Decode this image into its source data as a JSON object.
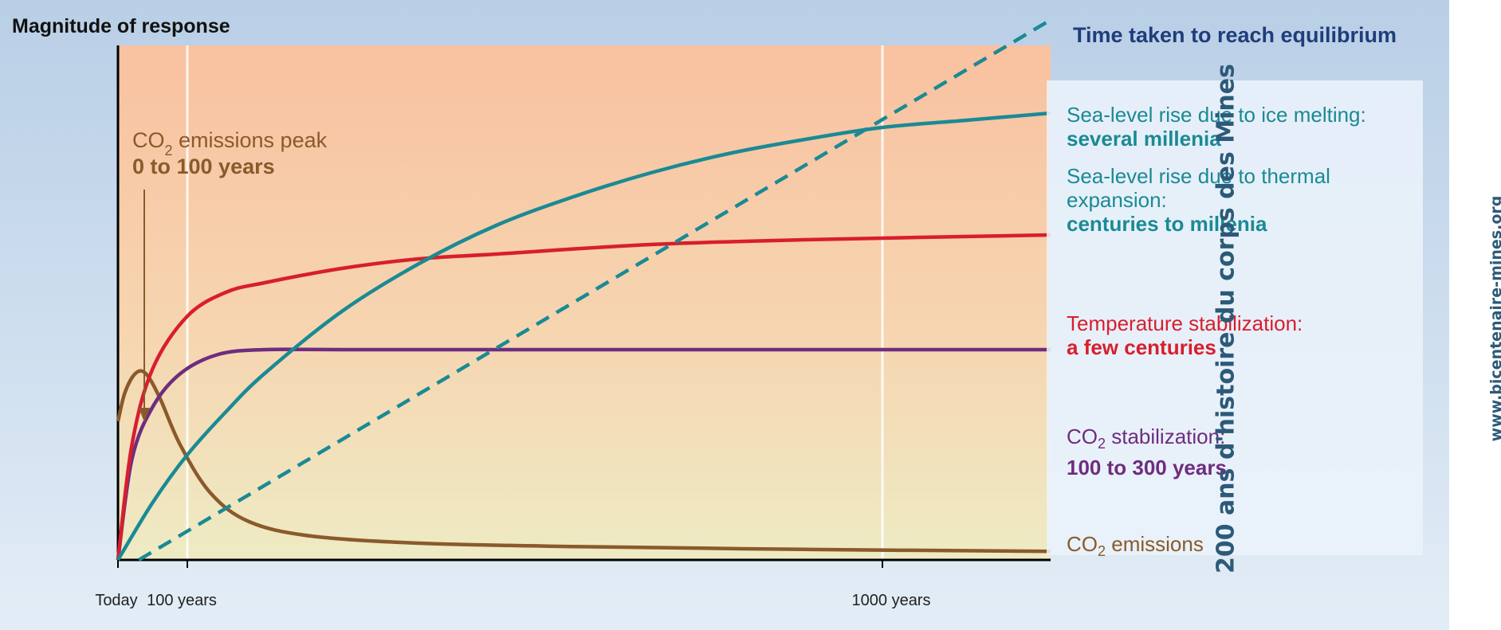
{
  "chart_data": {
    "type": "line",
    "ylabel": "Magnitude of response",
    "x_ticks": [
      {
        "value": 0,
        "label": "Today"
      },
      {
        "value": 100,
        "label": "100 years"
      },
      {
        "value": 1000,
        "label": "1000 years"
      }
    ],
    "xlim": [
      0,
      1200
    ],
    "ylim": [
      0,
      1
    ],
    "annotation": {
      "text_prefix": "CO",
      "text_sub": "2",
      "text_suffix": " emissions peak",
      "bold": "0 to 100 years",
      "points_to_x": 40
    },
    "right_panel_title": "Time taken to reach equilibrium",
    "series": [
      {
        "name": "CO2 emissions",
        "color": "#8a5a2b",
        "dash": false,
        "x": [
          0,
          10,
          25,
          40,
          60,
          90,
          130,
          180,
          260,
          400,
          600,
          900,
          1200
        ],
        "y": [
          0.29,
          0.35,
          0.39,
          0.39,
          0.34,
          0.24,
          0.14,
          0.08,
          0.05,
          0.035,
          0.028,
          0.022,
          0.018
        ]
      },
      {
        "name": "CO2 stabilization",
        "color": "#6e2d7e",
        "dash": false,
        "x": [
          0,
          20,
          50,
          90,
          140,
          200,
          300,
          600,
          900,
          1200
        ],
        "y": [
          0,
          0.21,
          0.32,
          0.39,
          0.43,
          0.44,
          0.44,
          0.44,
          0.44,
          0.44
        ]
      },
      {
        "name": "Temperature stabilization",
        "color": "#d81e2d",
        "dash": false,
        "x": [
          0,
          20,
          50,
          100,
          150,
          200,
          300,
          400,
          500,
          700,
          900,
          1200
        ],
        "y": [
          0,
          0.24,
          0.4,
          0.51,
          0.56,
          0.58,
          0.61,
          0.63,
          0.64,
          0.66,
          0.67,
          0.68
        ]
      },
      {
        "name": "Sea-level rise due to thermal expansion",
        "color": "#1a8a94",
        "dash": false,
        "x": [
          0,
          50,
          100,
          150,
          200,
          300,
          400,
          500,
          600,
          700,
          800,
          900,
          1000,
          1100,
          1200
        ],
        "y": [
          0,
          0.12,
          0.22,
          0.31,
          0.39,
          0.52,
          0.62,
          0.7,
          0.76,
          0.81,
          0.85,
          0.88,
          0.905,
          0.92,
          0.935
        ]
      },
      {
        "name": "Sea-level rise due to ice melting",
        "color": "#1a8a94",
        "dash": true,
        "x": [
          30,
          1200
        ],
        "y": [
          0,
          1.13
        ]
      }
    ]
  },
  "legend": [
    {
      "line1": "Sea-level rise due to ice melting:",
      "bold": "several millenia",
      "color": "#1a8a94"
    },
    {
      "line1": "Sea-level rise due to thermal",
      "line2": "expansion:",
      "bold": "centuries to millenia",
      "color": "#1a8a94"
    },
    {
      "line1": "Temperature stabilization:",
      "bold": "a few centuries",
      "color": "#d81e2d"
    },
    {
      "prefix": "CO",
      "sub": "2",
      "suffix": " stabilization:",
      "bold": "100 to 300 years",
      "color": "#6e2d7e"
    },
    {
      "prefix": "CO",
      "sub": "2",
      "suffix": " emissions",
      "color": "#8a5a2b"
    }
  ],
  "watermark": {
    "main": "200 ans d'histoire du corps des Mines",
    "url": "www.bicentenaire-mines.org"
  }
}
